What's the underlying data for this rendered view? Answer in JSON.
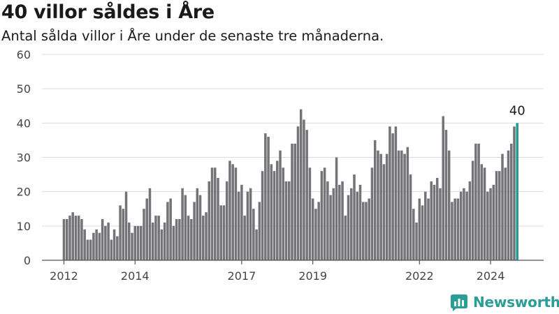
{
  "header": {
    "title": "40 villor såldes i Åre",
    "subtitle": "Antal sålda villor i Åre under de senaste tre månaderna."
  },
  "brand": {
    "name": "Newsworthy",
    "icon": "newsworthy-logo-icon",
    "color": "#2a9d95"
  },
  "chart_data": {
    "type": "bar",
    "title": "40 villor såldes i Åre",
    "subtitle": "Antal sålda villor i Åre under de senaste tre månaderna.",
    "xlabel": "",
    "ylabel": "",
    "ylim": [
      0,
      60
    ],
    "yticks": [
      "0",
      "10",
      "20",
      "30",
      "40",
      "50",
      "60"
    ],
    "xticks": [
      {
        "label": "2012",
        "year": 2012
      },
      {
        "label": "2014",
        "year": 2014
      },
      {
        "label": "2017",
        "year": 2017
      },
      {
        "label": "2019",
        "year": 2019
      },
      {
        "label": "2022",
        "year": 2022
      },
      {
        "label": "2024",
        "year": 2024
      }
    ],
    "x_start": "2012-01",
    "frequency": "monthly",
    "grid": true,
    "bar_color": "#747378",
    "highlight_color": "#229b94",
    "highlight_label": "40",
    "values": [
      12,
      12,
      13,
      14,
      13,
      13,
      12,
      9,
      6,
      6,
      8,
      9,
      8,
      12,
      10,
      11,
      6,
      9,
      7,
      16,
      15,
      20,
      11,
      8,
      10,
      10,
      10,
      15,
      18,
      21,
      11,
      13,
      13,
      9,
      11,
      17,
      18,
      10,
      12,
      12,
      21,
      19,
      13,
      12,
      17,
      21,
      19,
      13,
      14,
      23,
      27,
      27,
      24,
      16,
      16,
      23,
      29,
      28,
      27,
      20,
      22,
      13,
      20,
      21,
      15,
      9,
      17,
      26,
      37,
      36,
      28,
      26,
      29,
      32,
      27,
      23,
      23,
      34,
      34,
      39,
      44,
      41,
      38,
      27,
      18,
      15,
      17,
      26,
      27,
      23,
      19,
      21,
      30,
      22,
      23,
      13,
      19,
      21,
      25,
      20,
      22,
      17,
      17,
      18,
      27,
      35,
      32,
      31,
      28,
      31,
      39,
      37,
      39,
      32,
      32,
      31,
      33,
      25,
      15,
      11,
      18,
      16,
      20,
      18,
      23,
      22,
      24,
      21,
      42,
      38,
      32,
      17,
      18,
      18,
      20,
      21,
      20,
      23,
      29,
      34,
      34,
      28,
      27,
      20,
      21,
      22,
      26,
      26,
      31,
      27,
      32,
      34,
      39,
      40
    ]
  }
}
